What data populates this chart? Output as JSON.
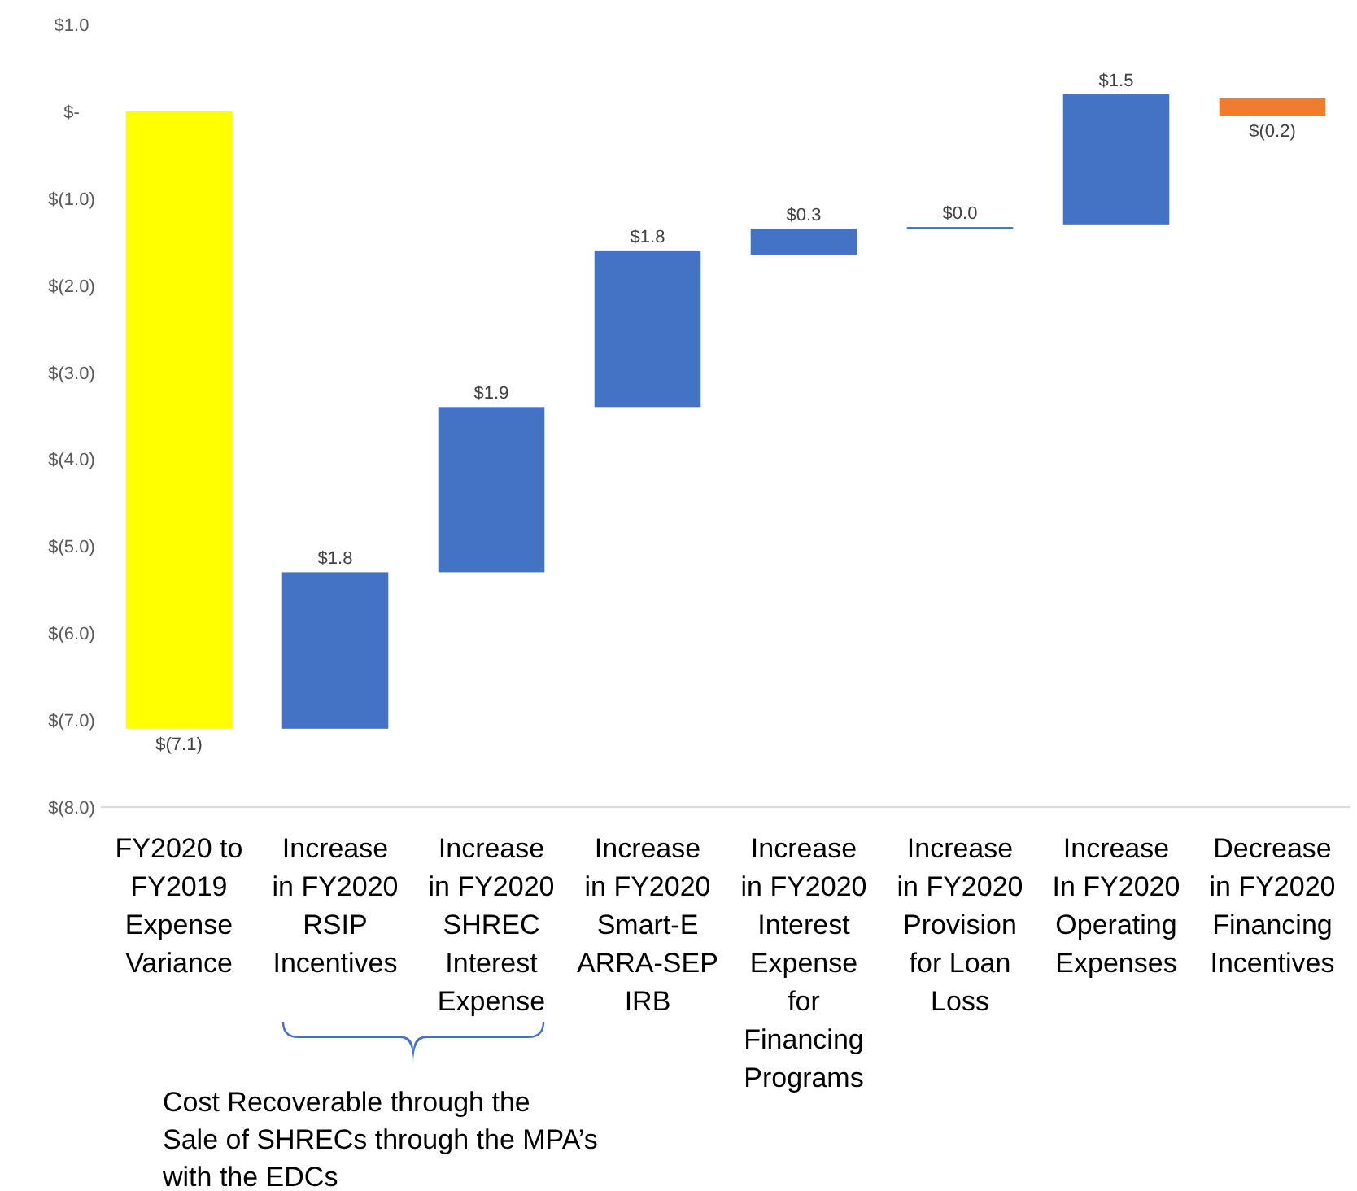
{
  "chart_data": {
    "type": "bar",
    "categories": [
      "FY2020 to FY2019 Expense Variance",
      "Increase in FY2020 RSIP Incentives",
      "Increase in FY2020 SHREC Interest Expense",
      "Increase in FY2020 Smart-E ARRA-SEP IRB",
      "Increase in FY2020 Interest Expense for Financing Programs",
      "Increase in FY2020 Provision for Loan Loss",
      "Increase In FY2020 Operating Expenses",
      "Decrease in FY2020 Financing Incentives"
    ],
    "values": [
      -7.1,
      1.8,
      1.9,
      1.8,
      0.3,
      0.0,
      1.5,
      -0.2
    ],
    "base": [
      0,
      -7.1,
      -5.3,
      -3.4,
      -1.65,
      -1.33,
      -1.3,
      0.15
    ],
    "colors": [
      "#ffff00",
      "#4472c4",
      "#4472c4",
      "#4472c4",
      "#4472c4",
      "#4472c4",
      "#4472c4",
      "#ed7d31"
    ],
    "value_labels": [
      "$(7.1)",
      "$1.8",
      "$1.9",
      "$1.8",
      "$0.3",
      "$0.0",
      "$1.5",
      "$(0.2)"
    ],
    "ylim": [
      -8,
      1
    ],
    "yticks": [
      {
        "value": -8,
        "label": "$(8.0)"
      },
      {
        "value": -7,
        "label": "$(7.0)"
      },
      {
        "value": -6,
        "label": "$(6.0)"
      },
      {
        "value": -5,
        "label": "$(5.0)"
      },
      {
        "value": -4,
        "label": "$(4.0)"
      },
      {
        "value": -3,
        "label": "$(3.0)"
      },
      {
        "value": -2,
        "label": "$(2.0)"
      },
      {
        "value": -1,
        "label": "$(1.0)"
      },
      {
        "value": 0,
        "label": "$-"
      },
      {
        "value": 1,
        "label": "$1.0"
      }
    ],
    "grid": false,
    "annotations": [
      "Cost Recoverable through the Sale of SHRECs through the MPA’s with the EDCs"
    ]
  }
}
